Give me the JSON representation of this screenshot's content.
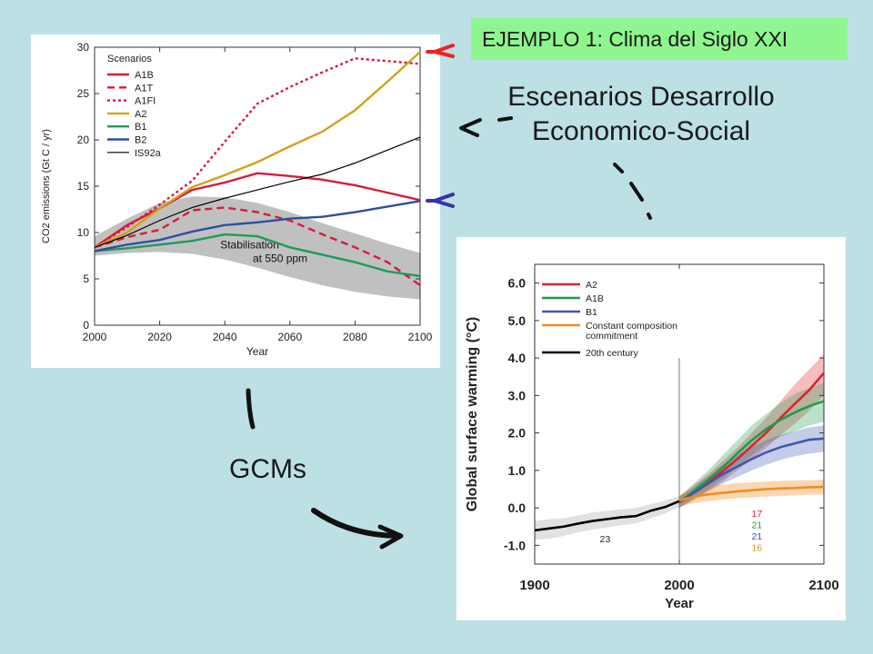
{
  "slide": {
    "tag_text": "EJEMPLO 1: Clima del Siglo XXI",
    "subtitle_line1": "Escenarios Desarrollo",
    "subtitle_line2": "Economico-Social",
    "gcms_label": "GCMs"
  },
  "chart_data": [
    {
      "type": "line",
      "title": "",
      "ylabel": "CO2 emissions (Gt C / yr)",
      "xlabel": "Year",
      "xlim": [
        2000,
        2100
      ],
      "ylim": [
        0,
        30
      ],
      "xticks": [
        2000,
        2020,
        2040,
        2060,
        2080,
        2100
      ],
      "yticks": [
        0,
        5,
        10,
        15,
        20,
        25,
        30
      ],
      "legend_title": "Scenarios",
      "legend_position": "top-left",
      "grid": false,
      "series": [
        {
          "name": "A1B",
          "color": "#d81b3c",
          "style": "solid",
          "x": [
            2000,
            2010,
            2020,
            2030,
            2040,
            2050,
            2060,
            2070,
            2080,
            2090,
            2100
          ],
          "values": [
            8.4,
            10.8,
            12.6,
            14.6,
            15.4,
            16.4,
            16.1,
            15.7,
            15.1,
            14.3,
            13.5
          ]
        },
        {
          "name": "A1T",
          "color": "#d81b3c",
          "style": "dashed",
          "x": [
            2000,
            2010,
            2020,
            2030,
            2040,
            2050,
            2060,
            2070,
            2080,
            2090,
            2100
          ],
          "values": [
            8.4,
            9.5,
            10.3,
            12.4,
            12.7,
            12.2,
            11.3,
            9.8,
            8.4,
            6.8,
            4.3
          ]
        },
        {
          "name": "A1FI",
          "color": "#d81b3c",
          "style": "dotted",
          "x": [
            2000,
            2010,
            2020,
            2030,
            2040,
            2050,
            2060,
            2070,
            2080,
            2090,
            2100
          ],
          "values": [
            8.4,
            10.6,
            13.0,
            15.6,
            19.8,
            23.9,
            25.7,
            27.3,
            28.8,
            28.5,
            28.2
          ]
        },
        {
          "name": "A2",
          "color": "#d4a017",
          "style": "solid",
          "x": [
            2000,
            2010,
            2020,
            2030,
            2040,
            2050,
            2060,
            2070,
            2080,
            2090,
            2100
          ],
          "values": [
            8.4,
            10.0,
            12.6,
            14.9,
            16.2,
            17.6,
            19.3,
            20.9,
            23.2,
            26.3,
            29.5
          ]
        },
        {
          "name": "B1",
          "color": "#1e9a5c",
          "style": "solid",
          "x": [
            2000,
            2010,
            2020,
            2030,
            2040,
            2050,
            2060,
            2070,
            2080,
            2090,
            2100
          ],
          "values": [
            8.0,
            8.3,
            8.7,
            9.1,
            9.8,
            9.6,
            8.4,
            7.6,
            6.8,
            5.8,
            5.3
          ]
        },
        {
          "name": "B2",
          "color": "#2e4fa0",
          "style": "solid",
          "x": [
            2000,
            2010,
            2020,
            2030,
            2040,
            2050,
            2060,
            2070,
            2080,
            2090,
            2100
          ],
          "values": [
            8.0,
            8.7,
            9.2,
            10.1,
            10.8,
            11.1,
            11.5,
            11.7,
            12.2,
            12.8,
            13.4
          ]
        },
        {
          "name": "IS92a",
          "color": "#000000",
          "style": "solid",
          "x": [
            2000,
            2010,
            2020,
            2030,
            2040,
            2050,
            2060,
            2070,
            2080,
            2090,
            2100
          ],
          "values": [
            8.4,
            9.7,
            11.3,
            12.7,
            13.7,
            14.6,
            15.5,
            16.3,
            17.5,
            18.9,
            20.3
          ]
        }
      ],
      "band": {
        "label": "Stabilisation\nat 550 ppm",
        "color": "#c0c0c0",
        "x": [
          2000,
          2010,
          2020,
          2030,
          2040,
          2050,
          2060,
          2070,
          2080,
          2090,
          2100
        ],
        "upper": [
          9.6,
          11.5,
          13.2,
          13.9,
          13.8,
          13.2,
          12.2,
          11.0,
          9.9,
          8.8,
          7.8
        ],
        "lower": [
          7.5,
          7.8,
          7.9,
          7.7,
          7.1,
          6.2,
          5.2,
          4.3,
          3.6,
          3.1,
          2.8
        ]
      }
    },
    {
      "type": "line",
      "title": "",
      "ylabel": "Global surface warming (°C)",
      "xlabel": "Year",
      "xlim": [
        1900,
        2100
      ],
      "ylim": [
        -1.5,
        6.5
      ],
      "xticks": [
        1900,
        2000,
        2100
      ],
      "yticks": [
        -1.0,
        0.0,
        1.0,
        2.0,
        3.0,
        4.0,
        5.0,
        6.0
      ],
      "ytick_labels": [
        "-1.0",
        "0.0",
        "1.0",
        "2.0",
        "3.0",
        "4.0",
        "5.0",
        "6.0"
      ],
      "legend_position": "top-left",
      "grid": false,
      "divider_x": 2000,
      "series": [
        {
          "name": "A2",
          "color": "#e0202e",
          "x": [
            2000,
            2010,
            2020,
            2030,
            2040,
            2050,
            2060,
            2070,
            2080,
            2090,
            2100
          ],
          "values": [
            0.15,
            0.42,
            0.68,
            0.98,
            1.3,
            1.65,
            2.0,
            2.4,
            2.78,
            3.15,
            3.6
          ],
          "band_upper": [
            0.3,
            0.6,
            0.9,
            1.25,
            1.6,
            2.0,
            2.4,
            2.85,
            3.3,
            3.7,
            4.1
          ],
          "band_lower": [
            0.0,
            0.25,
            0.45,
            0.7,
            1.0,
            1.3,
            1.6,
            1.95,
            2.25,
            2.6,
            3.0
          ]
        },
        {
          "name": "A1B",
          "color": "#1e9a4c",
          "x": [
            2000,
            2010,
            2020,
            2030,
            2040,
            2050,
            2060,
            2070,
            2080,
            2090,
            2100
          ],
          "values": [
            0.15,
            0.45,
            0.75,
            1.08,
            1.45,
            1.8,
            2.1,
            2.35,
            2.55,
            2.72,
            2.85
          ],
          "band_upper": [
            0.3,
            0.65,
            1.0,
            1.4,
            1.8,
            2.2,
            2.5,
            2.8,
            3.05,
            3.2,
            3.35
          ],
          "band_lower": [
            0.0,
            0.25,
            0.5,
            0.78,
            1.1,
            1.4,
            1.7,
            1.9,
            2.05,
            2.2,
            2.3
          ]
        },
        {
          "name": "B1",
          "color": "#3f57b0",
          "x": [
            2000,
            2010,
            2020,
            2030,
            2040,
            2050,
            2060,
            2070,
            2080,
            2090,
            2100
          ],
          "values": [
            0.15,
            0.4,
            0.65,
            0.9,
            1.1,
            1.3,
            1.48,
            1.62,
            1.72,
            1.82,
            1.85
          ],
          "band_upper": [
            0.3,
            0.55,
            0.85,
            1.15,
            1.4,
            1.62,
            1.8,
            1.95,
            2.05,
            2.15,
            2.2
          ],
          "band_lower": [
            0.0,
            0.2,
            0.45,
            0.65,
            0.82,
            1.0,
            1.15,
            1.28,
            1.38,
            1.45,
            1.5
          ]
        },
        {
          "name": "Constant composition\ncommitment",
          "color": "#f08c1e",
          "x": [
            2000,
            2010,
            2020,
            2030,
            2040,
            2050,
            2060,
            2070,
            2080,
            2090,
            2100
          ],
          "values": [
            0.2,
            0.3,
            0.36,
            0.4,
            0.44,
            0.47,
            0.5,
            0.52,
            0.53,
            0.55,
            0.56
          ],
          "band_upper": [
            0.35,
            0.5,
            0.58,
            0.62,
            0.66,
            0.68,
            0.7,
            0.72,
            0.73,
            0.74,
            0.75
          ],
          "band_lower": [
            0.05,
            0.12,
            0.18,
            0.22,
            0.26,
            0.28,
            0.3,
            0.32,
            0.33,
            0.35,
            0.36
          ]
        },
        {
          "name": "20th century",
          "color": "#000000",
          "x": [
            1900,
            1910,
            1920,
            1930,
            1940,
            1950,
            1960,
            1970,
            1980,
            1990,
            2000
          ],
          "values": [
            -0.6,
            -0.55,
            -0.5,
            -0.42,
            -0.35,
            -0.3,
            -0.25,
            -0.22,
            -0.08,
            0.02,
            0.18
          ],
          "band_upper": [
            -0.35,
            -0.3,
            -0.28,
            -0.2,
            -0.12,
            -0.08,
            -0.04,
            0.0,
            0.1,
            0.2,
            0.32
          ],
          "band_lower": [
            -0.85,
            -0.82,
            -0.75,
            -0.65,
            -0.58,
            -0.52,
            -0.46,
            -0.42,
            -0.28,
            -0.15,
            0.02
          ]
        }
      ],
      "model_counts": [
        {
          "text": "17",
          "color": "#e0202e"
        },
        {
          "text": "21",
          "color": "#1e9a4c"
        },
        {
          "text": "21",
          "color": "#3f57b0"
        },
        {
          "text": "16",
          "color": "#f08c1e"
        }
      ],
      "historical_count": "23"
    }
  ],
  "arrows": {
    "red_color": "#ee2222",
    "blue_color": "#3333aa",
    "black_color": "#111111"
  }
}
